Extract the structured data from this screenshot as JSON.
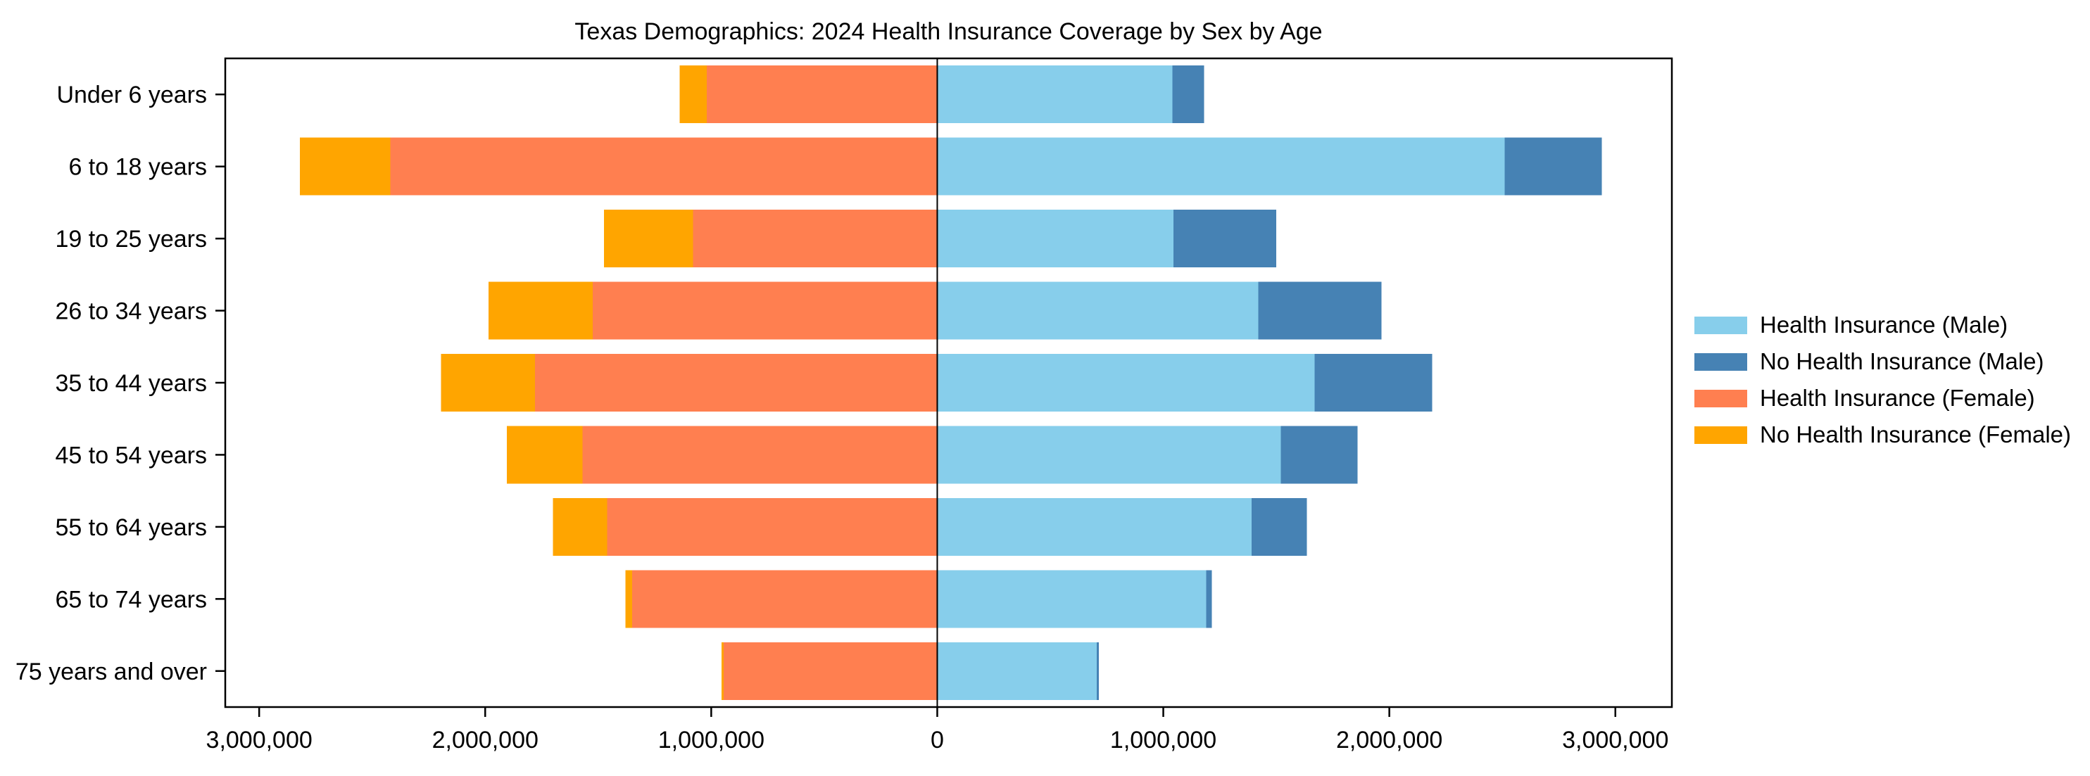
{
  "chart_data": {
    "type": "bar",
    "subtype": "population-pyramid-diverging-stacked-horizontal",
    "title": "Texas Demographics: 2024 Health Insurance Coverage by Sex by Age",
    "categories": [
      "Under 6 years",
      "6 to 18 years",
      "19 to 25 years",
      "26 to 34 years",
      "35 to 44 years",
      "45 to 54 years",
      "55 to 64 years",
      "65 to 74 years",
      "75 years and over"
    ],
    "series": [
      {
        "name": "Health Insurance (Male)",
        "side": "right",
        "stack_order": 1,
        "color": "#87CEEB",
        "values": [
          1040000,
          2510000,
          1045000,
          1420000,
          1670000,
          1520000,
          1390000,
          1190000,
          705000
        ]
      },
      {
        "name": "No Health Insurance (Male)",
        "side": "right",
        "stack_order": 2,
        "color": "#4682B4",
        "values": [
          140000,
          430000,
          455000,
          545000,
          520000,
          340000,
          245000,
          25000,
          10000
        ]
      },
      {
        "name": "Health Insurance (Female)",
        "side": "left",
        "stack_order": 1,
        "color": "#FF7F50",
        "values": [
          1020000,
          2420000,
          1080000,
          1525000,
          1780000,
          1570000,
          1460000,
          1350000,
          945000
        ]
      },
      {
        "name": "No Health Insurance (Female)",
        "side": "left",
        "stack_order": 2,
        "color": "#FFA500",
        "values": [
          120000,
          400000,
          395000,
          460000,
          415000,
          335000,
          240000,
          30000,
          10000
        ]
      }
    ],
    "x_ticks": [
      -3000000,
      -2000000,
      -1000000,
      0,
      1000000,
      2000000,
      3000000
    ],
    "x_tick_labels": [
      "3,000,000",
      "2,000,000",
      "1,000,000",
      "0",
      "1,000,000",
      "2,000,000",
      "3,000,000"
    ],
    "xlim": [
      -3150000,
      3250000
    ],
    "xlabel": "",
    "ylabel": "",
    "grid": false,
    "zero_line": true,
    "legend_position": "center-right-outside",
    "axis_color": "#000000",
    "background_color": "#ffffff"
  }
}
